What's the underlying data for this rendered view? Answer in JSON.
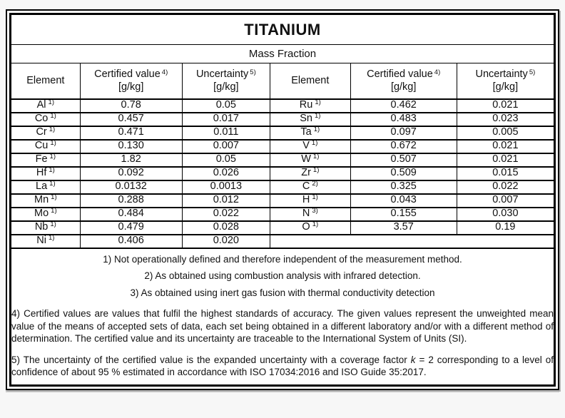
{
  "colors": {
    "page_bg": "#f7f7f7",
    "sheet_bg": "#ffffff",
    "border": "#000000",
    "text": "#111111"
  },
  "title": "TITANIUM",
  "subtitle": "Mass Fraction",
  "header": {
    "element": "Element",
    "certified_value": "Certified value",
    "certified_sup": "4)",
    "uncertainty": "Uncertainty",
    "uncertainty_sup": "5)",
    "unit": "[g/kg]"
  },
  "rows": [
    {
      "left": {
        "sym": "Al",
        "sup": "1)",
        "val": "0.78",
        "unc": "0.05"
      },
      "right": {
        "sym": "Ru",
        "sup": "1)",
        "val": "0.462",
        "unc": "0.021"
      }
    },
    {
      "left": {
        "sym": "Co",
        "sup": "1)",
        "val": "0.457",
        "unc": "0.017"
      },
      "right": {
        "sym": "Sn",
        "sup": "1)",
        "val": "0.483",
        "unc": "0.023"
      }
    },
    {
      "left": {
        "sym": "Cr",
        "sup": "1)",
        "val": "0.471",
        "unc": "0.011"
      },
      "right": {
        "sym": "Ta",
        "sup": "1)",
        "val": "0.097",
        "unc": "0.005"
      }
    },
    {
      "left": {
        "sym": "Cu",
        "sup": "1)",
        "val": "0.130",
        "unc": "0.007"
      },
      "right": {
        "sym": "V",
        "sup": "1)",
        "val": "0.672",
        "unc": "0.021"
      }
    },
    {
      "left": {
        "sym": "Fe",
        "sup": "1)",
        "val": "1.82",
        "unc": "0.05"
      },
      "right": {
        "sym": "W",
        "sup": "1)",
        "val": "0.507",
        "unc": "0.021"
      }
    },
    {
      "left": {
        "sym": "Hf",
        "sup": "1)",
        "val": "0.092",
        "unc": "0.026"
      },
      "right": {
        "sym": "Zr",
        "sup": "1)",
        "val": "0.509",
        "unc": "0.015"
      }
    },
    {
      "left": {
        "sym": "La",
        "sup": "1)",
        "val": "0.0132",
        "unc": "0.0013"
      },
      "right": {
        "sym": "C",
        "sup": "2)",
        "val": "0.325",
        "unc": "0.022"
      }
    },
    {
      "left": {
        "sym": "Mn",
        "sup": "1)",
        "val": "0.288",
        "unc": "0.012"
      },
      "right": {
        "sym": "H",
        "sup": "1)",
        "val": "0.043",
        "unc": "0.007"
      }
    },
    {
      "left": {
        "sym": "Mo",
        "sup": "1)",
        "val": "0.484",
        "unc": "0.022"
      },
      "right": {
        "sym": "N",
        "sup": "3)",
        "val": "0.155",
        "unc": "0.030"
      }
    },
    {
      "left": {
        "sym": "Nb",
        "sup": "1)",
        "val": "0.479",
        "unc": "0.028"
      },
      "right": {
        "sym": "O",
        "sup": "1)",
        "val": "3.57",
        "unc": "0.19"
      }
    },
    {
      "left": {
        "sym": "Ni",
        "sup": "1)",
        "val": "0.406",
        "unc": "0.020"
      },
      "right": null
    }
  ],
  "footnotes": {
    "fn1": "1) Not operationally defined and therefore independent of the measurement method.",
    "fn2": "2) As obtained using combustion analysis with infrared detection.",
    "fn3": "3) As obtained using inert gas fusion with thermal conductivity detection",
    "fn4": "4) Certified values are values that fulfil the highest standards of accuracy. The given values represent the unweighted mean value of the means of accepted sets of data, each set being obtained in a different laboratory and/or with a different method of determination. The certified value and its uncertainty are traceable to the International System of Units (SI).",
    "fn5_before_k": "5) The uncertainty of the certified value is the expanded uncertainty with a coverage factor ",
    "fn5_k": "k",
    "fn5_after_k": " = 2 corresponding to a level of confidence of about 95 % estimated in accordance with ISO 17034:2016 and ISO Guide 35:2017."
  }
}
